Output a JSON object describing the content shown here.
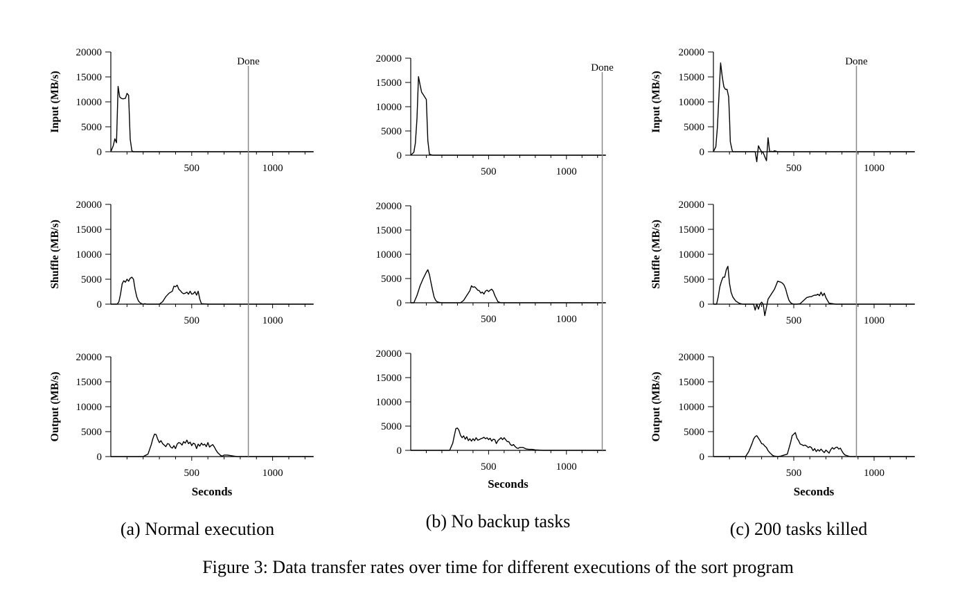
{
  "figure_caption": "Figure 3: Data transfer rates over time for different executions of the sort program",
  "chart_data": [
    {
      "type": "line",
      "subfigure_caption": "(a) Normal execution",
      "xlabel": "Seconds",
      "xticks": [
        "500",
        "1000"
      ],
      "yticks": [
        "0",
        "5000",
        "10000",
        "15000",
        "20000"
      ],
      "xlim": [
        0,
        1250
      ],
      "ylim": [
        0,
        20000
      ],
      "done_label": "Done",
      "done_at": 850,
      "panels": [
        {
          "ylabel": "Input (MB/s)",
          "series": {
            "x": [
              0,
              15,
              25,
              35,
              45,
              55,
              65,
              75,
              90,
              100,
              110,
              120,
              130,
              140,
              160,
              200,
              400,
              700,
              850,
              1000,
              1250
            ],
            "values": [
              0,
              1200,
              2600,
              1800,
              13100,
              11000,
              10700,
              10600,
              10700,
              11700,
              11300,
              2500,
              200,
              0,
              0,
              0,
              0,
              0,
              0,
              0,
              0
            ]
          }
        },
        {
          "ylabel": "Shuffle (MB/s)",
          "series": {
            "x": [
              0,
              40,
              50,
              60,
              70,
              80,
              90,
              100,
              110,
              120,
              130,
              140,
              150,
              160,
              170,
              180,
              190,
              200,
              210,
              220,
              300,
              320,
              340,
              360,
              380,
              390,
              400,
              410,
              420,
              430,
              440,
              450,
              460,
              470,
              480,
              490,
              500,
              510,
              520,
              530,
              540,
              550,
              560,
              600,
              700,
              850,
              1000,
              1250
            ],
            "values": [
              0,
              0,
              500,
              2000,
              4100,
              4700,
              4400,
              5000,
              4600,
              5200,
              5400,
              5000,
              3000,
              1500,
              700,
              300,
              100,
              0,
              100,
              0,
              0,
              500,
              1500,
              2200,
              2600,
              3600,
              3500,
              3800,
              3000,
              2700,
              2300,
              2100,
              2200,
              2400,
              2000,
              2600,
              2000,
              2100,
              2500,
              1800,
              2600,
              1000,
              100,
              0,
              0,
              0,
              0,
              0
            ]
          }
        },
        {
          "ylabel": "Output (MB/s)",
          "series": {
            "x": [
              0,
              200,
              230,
              250,
              260,
              270,
              280,
              290,
              300,
              310,
              320,
              330,
              340,
              350,
              360,
              370,
              380,
              390,
              400,
              410,
              420,
              430,
              440,
              450,
              460,
              470,
              480,
              490,
              500,
              510,
              520,
              530,
              540,
              550,
              560,
              570,
              580,
              590,
              600,
              610,
              620,
              630,
              640,
              650,
              660,
              670,
              680,
              690,
              700,
              720,
              740,
              760,
              780,
              800,
              820,
              850,
              1000,
              1250
            ],
            "values": [
              0,
              0,
              500,
              2400,
              3600,
              4500,
              4400,
              3500,
              2800,
              3200,
              2600,
              2300,
              2000,
              2600,
              2500,
              1900,
              1700,
              2200,
              1600,
              2500,
              2800,
              2700,
              2300,
              3000,
              2700,
              3300,
              2600,
              2900,
              2200,
              2700,
              2500,
              1600,
              2500,
              2100,
              2700,
              2300,
              2500,
              2000,
              2800,
              1900,
              2200,
              2400,
              1900,
              1300,
              800,
              500,
              200,
              100,
              300,
              300,
              200,
              100,
              0,
              0,
              0,
              0,
              0,
              0
            ]
          }
        }
      ]
    },
    {
      "type": "line",
      "subfigure_caption": "(b) No backup tasks",
      "xlabel": "Seconds",
      "xticks": [
        "500",
        "1000"
      ],
      "yticks": [
        "0",
        "5000",
        "10000",
        "15000",
        "20000"
      ],
      "xlim": [
        0,
        1250
      ],
      "ylim": [
        0,
        20000
      ],
      "done_label": "Done",
      "done_at": 1230,
      "panels": [
        {
          "ylabel": "",
          "series": {
            "x": [
              0,
              20,
              30,
              40,
              50,
              60,
              70,
              80,
              90,
              100,
              110,
              120,
              140,
              200,
              400,
              700,
              1000,
              1250
            ],
            "values": [
              0,
              600,
              2500,
              7500,
              16200,
              14500,
              13000,
              12500,
              12000,
              11500,
              3000,
              200,
              0,
              0,
              0,
              0,
              0,
              0
            ]
          }
        },
        {
          "ylabel": "",
          "series": {
            "x": [
              0,
              20,
              40,
              60,
              80,
              100,
              110,
              120,
              130,
              140,
              150,
              160,
              170,
              180,
              200,
              240,
              280,
              320,
              340,
              360,
              380,
              390,
              400,
              410,
              420,
              430,
              440,
              450,
              460,
              470,
              480,
              490,
              500,
              510,
              520,
              530,
              540,
              560,
              580,
              600,
              700,
              800,
              1000,
              1250
            ],
            "values": [
              0,
              0,
              1500,
              3500,
              5000,
              6300,
              6800,
              5800,
              4200,
              2600,
              1200,
              500,
              200,
              100,
              0,
              0,
              0,
              0,
              500,
              1500,
              2500,
              3500,
              3200,
              3300,
              3000,
              2600,
              2500,
              2000,
              2200,
              1800,
              2400,
              2600,
              2300,
              2600,
              2800,
              2400,
              1500,
              200,
              0,
              0,
              0,
              0,
              0,
              0
            ]
          }
        },
        {
          "ylabel": "",
          "series": {
            "x": [
              0,
              250,
              270,
              280,
              290,
              300,
              310,
              320,
              330,
              340,
              350,
              360,
              370,
              380,
              390,
              400,
              410,
              420,
              430,
              440,
              450,
              460,
              470,
              480,
              490,
              500,
              510,
              520,
              530,
              540,
              550,
              560,
              570,
              580,
              590,
              600,
              610,
              620,
              630,
              640,
              650,
              660,
              670,
              680,
              690,
              700,
              720,
              740,
              760,
              780,
              800,
              850,
              1000,
              1250
            ],
            "values": [
              0,
              0,
              1500,
              3000,
              4500,
              4600,
              4100,
              3100,
              2600,
              3000,
              2300,
              2800,
              2000,
              2400,
              1900,
              2400,
              2000,
              2600,
              2100,
              2200,
              2400,
              2500,
              2700,
              2400,
              2600,
              2200,
              2500,
              1900,
              2300,
              2200,
              1400,
              2000,
              2300,
              2600,
              2200,
              2600,
              2200,
              1800,
              1800,
              1200,
              1000,
              1200,
              800,
              500,
              400,
              600,
              600,
              300,
              200,
              200,
              100,
              0,
              0,
              0
            ]
          }
        }
      ]
    },
    {
      "type": "line",
      "subfigure_caption": "(c) 200 tasks killed",
      "xlabel": "Seconds",
      "xticks": [
        "500",
        "1000"
      ],
      "yticks": [
        "0",
        "5000",
        "10000",
        "15000",
        "20000"
      ],
      "xlim": [
        0,
        1250
      ],
      "ylim": [
        0,
        20000
      ],
      "done_label": "Done",
      "done_at": 890,
      "panels": [
        {
          "ylabel": "Input (MB/s)",
          "series": {
            "x": [
              0,
              15,
              25,
              35,
              45,
              55,
              65,
              75,
              85,
              95,
              100,
              105,
              115,
              120,
              140,
              200,
              250,
              260,
              270,
              280,
              290,
              300,
              310,
              320,
              330,
              340,
              350,
              360,
              370,
              380,
              400,
              500,
              700,
              1000,
              1250
            ],
            "values": [
              0,
              1000,
              5000,
              11500,
              17800,
              15000,
              13000,
              12500,
              12500,
              11000,
              7000,
              2000,
              500,
              0,
              0,
              0,
              0,
              0,
              -2000,
              1200,
              500,
              0,
              -200,
              -1000,
              -1800,
              2800,
              0,
              100,
              0,
              200,
              0,
              0,
              0,
              0,
              0
            ]
          }
        },
        {
          "ylabel": "Shuffle (MB/s)",
          "series": {
            "x": [
              0,
              20,
              30,
              40,
              50,
              60,
              70,
              80,
              90,
              100,
              110,
              120,
              130,
              140,
              150,
              160,
              170,
              180,
              200,
              240,
              250,
              260,
              270,
              280,
              290,
              300,
              310,
              320,
              340,
              360,
              380,
              390,
              400,
              410,
              420,
              430,
              440,
              450,
              460,
              470,
              480,
              490,
              500,
              520,
              540,
              560,
              580,
              600,
              610,
              620,
              630,
              640,
              650,
              660,
              670,
              680,
              690,
              700,
              720,
              760,
              800,
              1000,
              1250
            ],
            "values": [
              0,
              0,
              1500,
              3500,
              4600,
              5400,
              5400,
              6900,
              7600,
              4200,
              2400,
              1500,
              1000,
              600,
              400,
              200,
              100,
              0,
              0,
              0,
              0,
              -1200,
              0,
              -1000,
              0,
              400,
              0,
              -2300,
              1000,
              2000,
              3000,
              3800,
              4600,
              4500,
              4400,
              4200,
              3800,
              3000,
              1800,
              800,
              300,
              100,
              0,
              0,
              100,
              700,
              1300,
              1500,
              1500,
              1700,
              1800,
              1800,
              2000,
              1700,
              2400,
              1700,
              2200,
              1300,
              200,
              0,
              0,
              0,
              0
            ]
          }
        },
        {
          "ylabel": "Output (MB/s)",
          "series": {
            "x": [
              0,
              200,
              220,
              240,
              250,
              260,
              270,
              280,
              290,
              300,
              310,
              320,
              330,
              340,
              350,
              360,
              370,
              380,
              400,
              420,
              440,
              460,
              480,
              490,
              500,
              510,
              520,
              530,
              540,
              550,
              560,
              570,
              580,
              590,
              600,
              610,
              620,
              630,
              640,
              650,
              660,
              670,
              680,
              690,
              700,
              710,
              720,
              730,
              740,
              750,
              760,
              770,
              780,
              790,
              800,
              810,
              820,
              850,
              1000,
              1250
            ],
            "values": [
              0,
              0,
              1000,
              2600,
              3500,
              4000,
              4200,
              3700,
              3200,
              2600,
              2500,
              2100,
              1800,
              1200,
              800,
              500,
              200,
              100,
              0,
              100,
              300,
              500,
              2800,
              4200,
              4500,
              4800,
              3700,
              3200,
              2500,
              2400,
              2200,
              2300,
              2100,
              1800,
              2000,
              1800,
              1200,
              1600,
              1000,
              1400,
              1100,
              1500,
              1100,
              800,
              1300,
              1000,
              700,
              1400,
              1800,
              1500,
              1800,
              1900,
              1500,
              1700,
              1100,
              600,
              300,
              0,
              0,
              0
            ]
          }
        }
      ]
    }
  ]
}
